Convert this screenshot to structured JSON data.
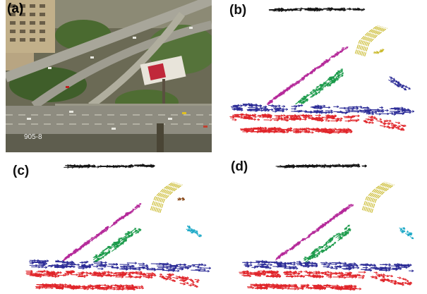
{
  "panels": {
    "a": {
      "label": "(a)",
      "caption": "905-8"
    },
    "b": {
      "label": "(b)"
    },
    "c": {
      "label": "(c)"
    },
    "d": {
      "label": "(d)"
    }
  },
  "colors": {
    "black": "#151515",
    "yellow": "#c9b92a",
    "magenta": "#b52a9a",
    "green": "#1a9a4a",
    "blue": "#2b2b96",
    "red": "#e0252a",
    "cyan": "#18a7c6",
    "brown": "#8a4a1a"
  }
}
